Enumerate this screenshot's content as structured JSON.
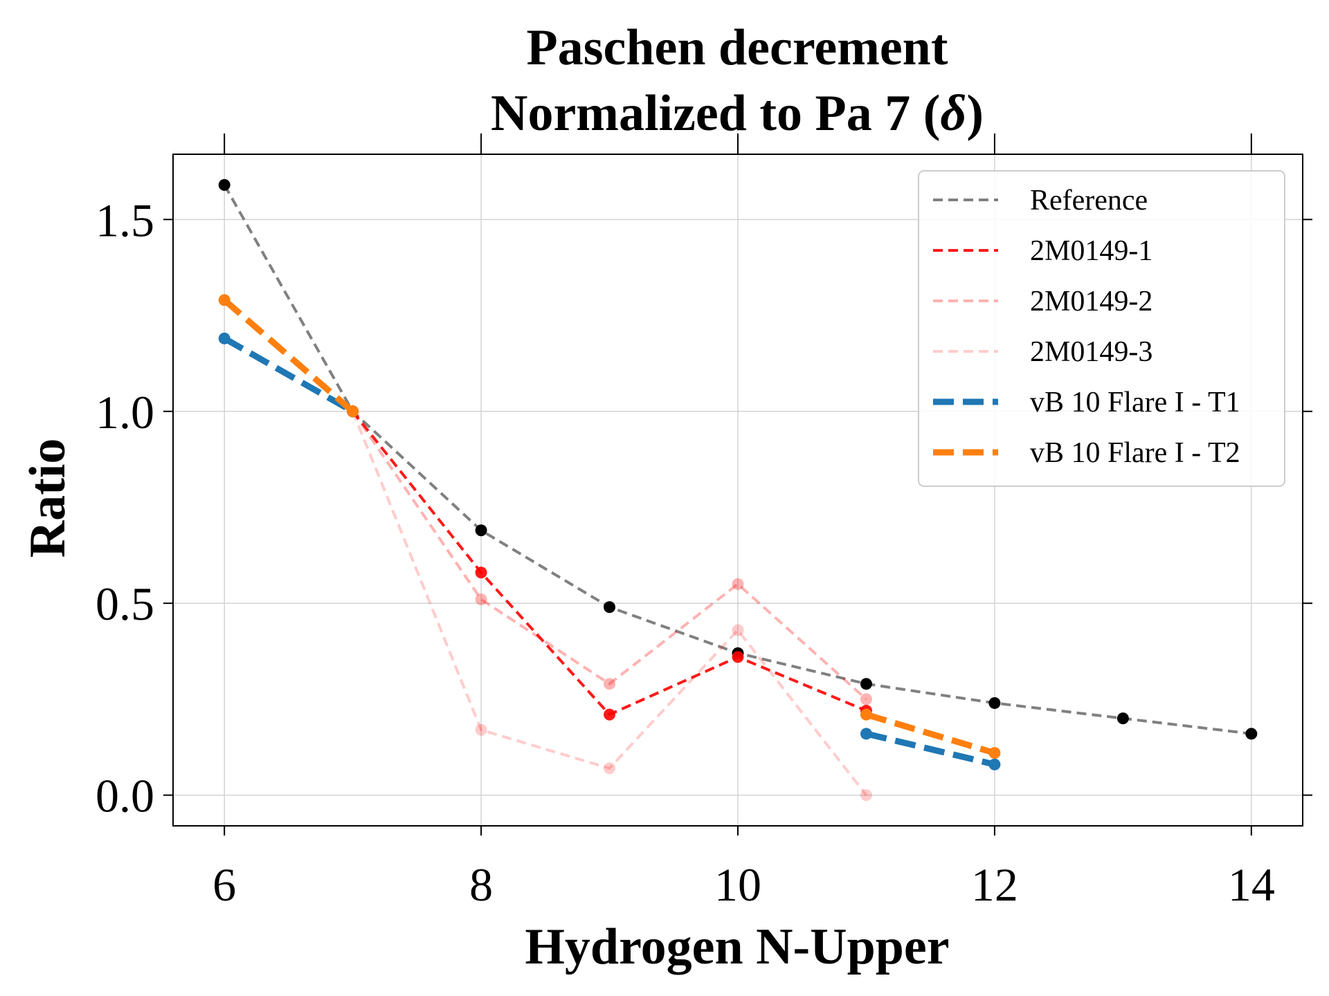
{
  "chart_data": {
    "type": "line",
    "title_line1": "Paschen decrement",
    "title_line2": "Normalized to Pa 7 (",
    "title_symbol": "δ",
    "title_close": ")",
    "xlabel": "Hydrogen N-Upper",
    "ylabel": "Ratio",
    "xlim": [
      5.6,
      14.4
    ],
    "ylim": [
      -0.08,
      1.67
    ],
    "xticks": [
      6,
      8,
      10,
      12,
      14
    ],
    "yticks": [
      0.0,
      0.5,
      1.0,
      1.5
    ],
    "xtick_labels": [
      "6",
      "8",
      "10",
      "12",
      "14"
    ],
    "ytick_labels": [
      "0.0",
      "0.5",
      "1.0",
      "1.5"
    ],
    "grid": true,
    "legend_position": "top-right",
    "series": [
      {
        "name": "Reference",
        "color": "#808080",
        "alpha": 1.0,
        "style": "thin-dash",
        "marker_color": "#000000",
        "x": [
          6,
          7,
          8,
          9,
          10,
          11,
          12,
          13,
          14
        ],
        "y": [
          1.59,
          1.0,
          0.69,
          0.49,
          0.37,
          0.29,
          0.24,
          0.2,
          0.16
        ]
      },
      {
        "name": "2M0149-1",
        "color": "#ff0000",
        "alpha": 0.9,
        "style": "thin-dash",
        "marker_color": "#ff0000",
        "x": [
          7,
          8,
          9,
          10,
          11
        ],
        "y": [
          1.0,
          0.58,
          0.21,
          0.36,
          0.22
        ]
      },
      {
        "name": "2M0149-2",
        "color": "#ff0000",
        "alpha": 0.3,
        "style": "thin-dash",
        "marker_color": "#ff0000",
        "x": [
          7,
          8,
          9,
          10,
          11
        ],
        "y": [
          1.0,
          0.51,
          0.29,
          0.55,
          0.25
        ]
      },
      {
        "name": "2M0149-3",
        "color": "#ff0000",
        "alpha": 0.2,
        "style": "thin-dash",
        "marker_color": "#ff0000",
        "x": [
          7,
          8,
          9,
          10,
          11
        ],
        "y": [
          1.0,
          0.17,
          0.07,
          0.43,
          0.0
        ]
      },
      {
        "name": "vB 10 Flare I - T1",
        "color": "#1f77b4",
        "alpha": 1.0,
        "style": "thick-dash",
        "marker_color": "#1f77b4",
        "x": [
          6,
          7,
          11,
          12
        ],
        "y": [
          1.19,
          1.0,
          0.16,
          0.08
        ],
        "segments": [
          [
            0,
            1
          ],
          [
            2,
            3
          ]
        ]
      },
      {
        "name": "vB 10 Flare I - T2",
        "color": "#ff7f0e",
        "alpha": 1.0,
        "style": "thick-dash",
        "marker_color": "#ff7f0e",
        "x": [
          6,
          7,
          11,
          12
        ],
        "y": [
          1.29,
          1.0,
          0.21,
          0.11
        ],
        "segments": [
          [
            0,
            1
          ],
          [
            2,
            3
          ]
        ]
      }
    ]
  }
}
